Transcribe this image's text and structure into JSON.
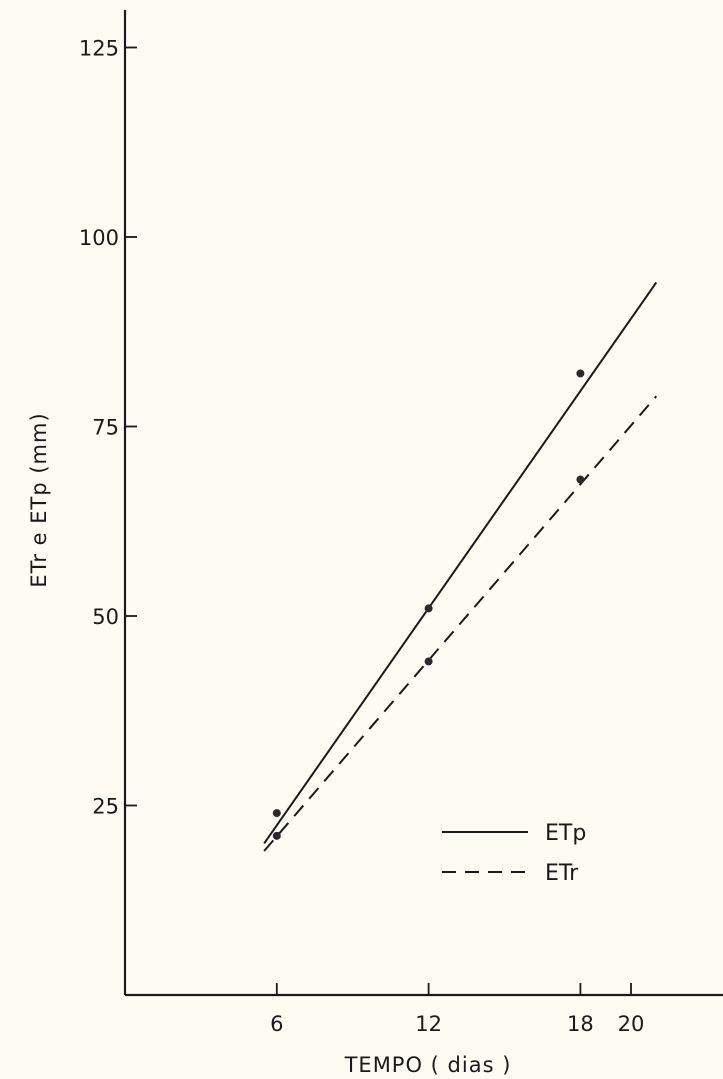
{
  "chart_data": {
    "type": "line",
    "xlabel": "TEMPO ( dias )",
    "ylabel": "ETr e ETp (mm)",
    "x_ticks": [
      6,
      12,
      18,
      20
    ],
    "y_ticks": [
      25,
      50,
      75,
      100,
      125
    ],
    "xlim": [
      0,
      24
    ],
    "ylim": [
      0,
      130
    ],
    "grid": false,
    "legend_position": "bottom-right",
    "series": [
      {
        "name": "ETp",
        "style": "solid",
        "points": {
          "x": [
            6,
            12,
            18
          ],
          "y": [
            24,
            51,
            82
          ]
        },
        "fit_line": {
          "x": [
            5.5,
            21
          ],
          "y": [
            20,
            94
          ]
        }
      },
      {
        "name": "ETr",
        "style": "dashed",
        "points": {
          "x": [
            6,
            12,
            18
          ],
          "y": [
            21,
            44,
            68
          ]
        },
        "fit_line": {
          "x": [
            5.5,
            21
          ],
          "y": [
            19,
            79
          ]
        }
      }
    ]
  }
}
